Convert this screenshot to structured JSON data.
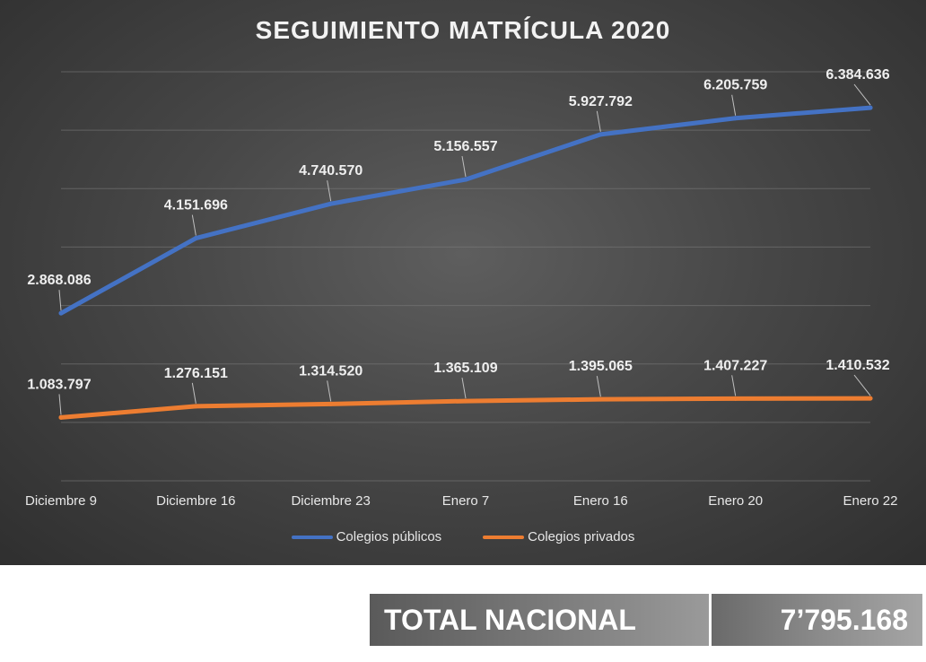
{
  "chart_data": {
    "type": "line",
    "title": "SEGUIMIENTO MATRÍCULA 2020",
    "xlabel": "",
    "ylabel": "",
    "categories": [
      "Diciembre 9",
      "Diciembre 16",
      "Diciembre 23",
      "Enero 7",
      "Enero 16",
      "Enero 20",
      "Enero 22"
    ],
    "series": [
      {
        "name": "Colegios públicos",
        "color": "#4472c4",
        "values": [
          2868086,
          4151696,
          4740570,
          5156557,
          5927792,
          6205759,
          6384636
        ],
        "labels": [
          "2.868.086",
          "4.151.696",
          "4.740.570",
          "5.156.557",
          "5.927.792",
          "6.205.759",
          "6.384.636"
        ]
      },
      {
        "name": "Colegios privados",
        "color": "#ed7d31",
        "values": [
          1083797,
          1276151,
          1314520,
          1365109,
          1395065,
          1407227,
          1410532
        ],
        "labels": [
          "1.083.797",
          "1.276.151",
          "1.314.520",
          "1.365.109",
          "1.395.065",
          "1.407.227",
          "1.410.532"
        ]
      }
    ],
    "ylim": [
      0,
      7000000
    ],
    "grid": true,
    "legend_position": "bottom"
  },
  "total": {
    "label": "TOTAL NACIONAL",
    "value": "7’795.168"
  }
}
